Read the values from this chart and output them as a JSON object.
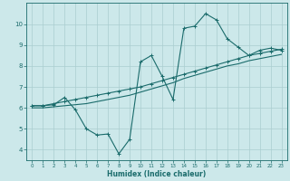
{
  "xlabel": "Humidex (Indice chaleur)",
  "xlim": [
    -0.5,
    23.5
  ],
  "ylim": [
    3.5,
    11
  ],
  "xticks": [
    0,
    1,
    2,
    3,
    4,
    5,
    6,
    7,
    8,
    9,
    10,
    11,
    12,
    13,
    14,
    15,
    16,
    17,
    18,
    19,
    20,
    21,
    22,
    23
  ],
  "yticks": [
    4,
    5,
    6,
    7,
    8,
    9,
    10
  ],
  "bg_color": "#cce8ea",
  "grid_color": "#aacdd0",
  "line_color": "#1a6b6b",
  "line1_x": [
    0,
    1,
    2,
    3,
    4,
    5,
    6,
    7,
    8,
    9,
    10,
    11,
    12,
    13,
    14,
    15,
    16,
    17,
    18,
    19,
    20,
    21,
    22,
    23
  ],
  "line1_y": [
    6.1,
    6.1,
    6.15,
    6.5,
    5.9,
    5.0,
    4.7,
    4.75,
    3.8,
    4.5,
    8.2,
    8.5,
    7.5,
    6.4,
    9.8,
    9.9,
    10.5,
    10.2,
    9.3,
    8.9,
    8.5,
    8.75,
    8.85,
    8.75
  ],
  "line2_x": [
    0,
    1,
    2,
    3,
    4,
    5,
    6,
    7,
    8,
    9,
    10,
    11,
    12,
    13,
    14,
    15,
    16,
    17,
    18,
    19,
    20,
    21,
    22,
    23
  ],
  "line2_y": [
    6.1,
    6.1,
    6.2,
    6.3,
    6.4,
    6.5,
    6.6,
    6.7,
    6.8,
    6.9,
    7.0,
    7.15,
    7.3,
    7.45,
    7.6,
    7.75,
    7.9,
    8.05,
    8.2,
    8.35,
    8.5,
    8.6,
    8.7,
    8.8
  ],
  "line3_x": [
    0,
    1,
    2,
    3,
    4,
    5,
    6,
    7,
    8,
    9,
    10,
    11,
    12,
    13,
    14,
    15,
    16,
    17,
    18,
    19,
    20,
    21,
    22,
    23
  ],
  "line3_y": [
    6.0,
    6.0,
    6.05,
    6.1,
    6.15,
    6.2,
    6.3,
    6.4,
    6.5,
    6.6,
    6.75,
    6.9,
    7.05,
    7.2,
    7.4,
    7.55,
    7.7,
    7.85,
    8.0,
    8.1,
    8.25,
    8.35,
    8.45,
    8.55
  ]
}
